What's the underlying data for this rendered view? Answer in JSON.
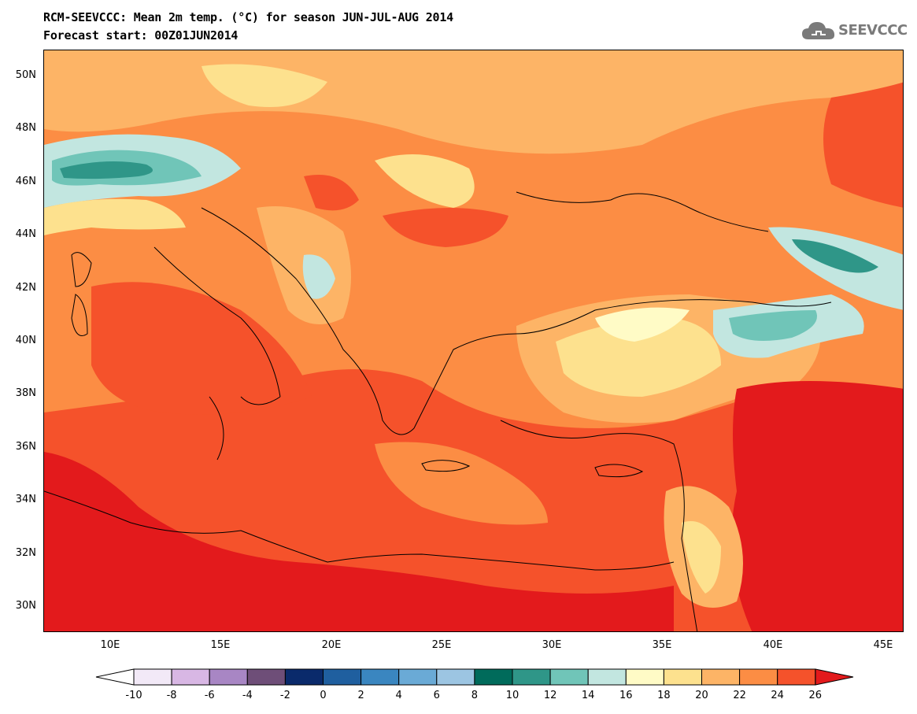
{
  "title": {
    "line1": "RCM-SEEVCCC: Mean 2m temp. (°C) for season JUN-JUL-AUG 2014",
    "line2": "Forecast start: 00Z01JUN2014"
  },
  "logo": {
    "text": "SEEVCCC",
    "icon": "cloud-logo-icon",
    "color": "#7a7a7a"
  },
  "map": {
    "type": "filled-contour",
    "variable": "Mean 2m temperature (°C)",
    "lon_range": [
      7,
      46
    ],
    "lat_range": [
      29,
      51
    ],
    "lat_ticks": [
      "50N",
      "48N",
      "46N",
      "44N",
      "42N",
      "40N",
      "38N",
      "36N",
      "34N",
      "32N",
      "30N"
    ],
    "lat_values": [
      50,
      48,
      46,
      44,
      42,
      40,
      38,
      36,
      34,
      32,
      30
    ],
    "lon_ticks": [
      "10E",
      "15E",
      "20E",
      "25E",
      "30E",
      "35E",
      "40E",
      "45E"
    ],
    "lon_values": [
      10,
      15,
      20,
      25,
      30,
      35,
      40,
      45
    ]
  },
  "colorbar": {
    "labels": [
      "-10",
      "-8",
      "-6",
      "-4",
      "-2",
      "0",
      "2",
      "4",
      "6",
      "8",
      "10",
      "12",
      "14",
      "16",
      "18",
      "20",
      "22",
      "24",
      "26"
    ],
    "under_color": "#ffffff",
    "over_color": "#e31a1c",
    "colors": [
      "#f2e9f7",
      "#d8b7e4",
      "#a886c4",
      "#6e4e78",
      "#0a2a6b",
      "#1f5f9f",
      "#3a86c0",
      "#6aaad6",
      "#9cc5e2",
      "#006b5b",
      "#2f9688",
      "#70c5b8",
      "#c2e6e0",
      "#fffbc6",
      "#fde18e",
      "#fdb466",
      "#fc8d44",
      "#f5522b"
    ]
  }
}
